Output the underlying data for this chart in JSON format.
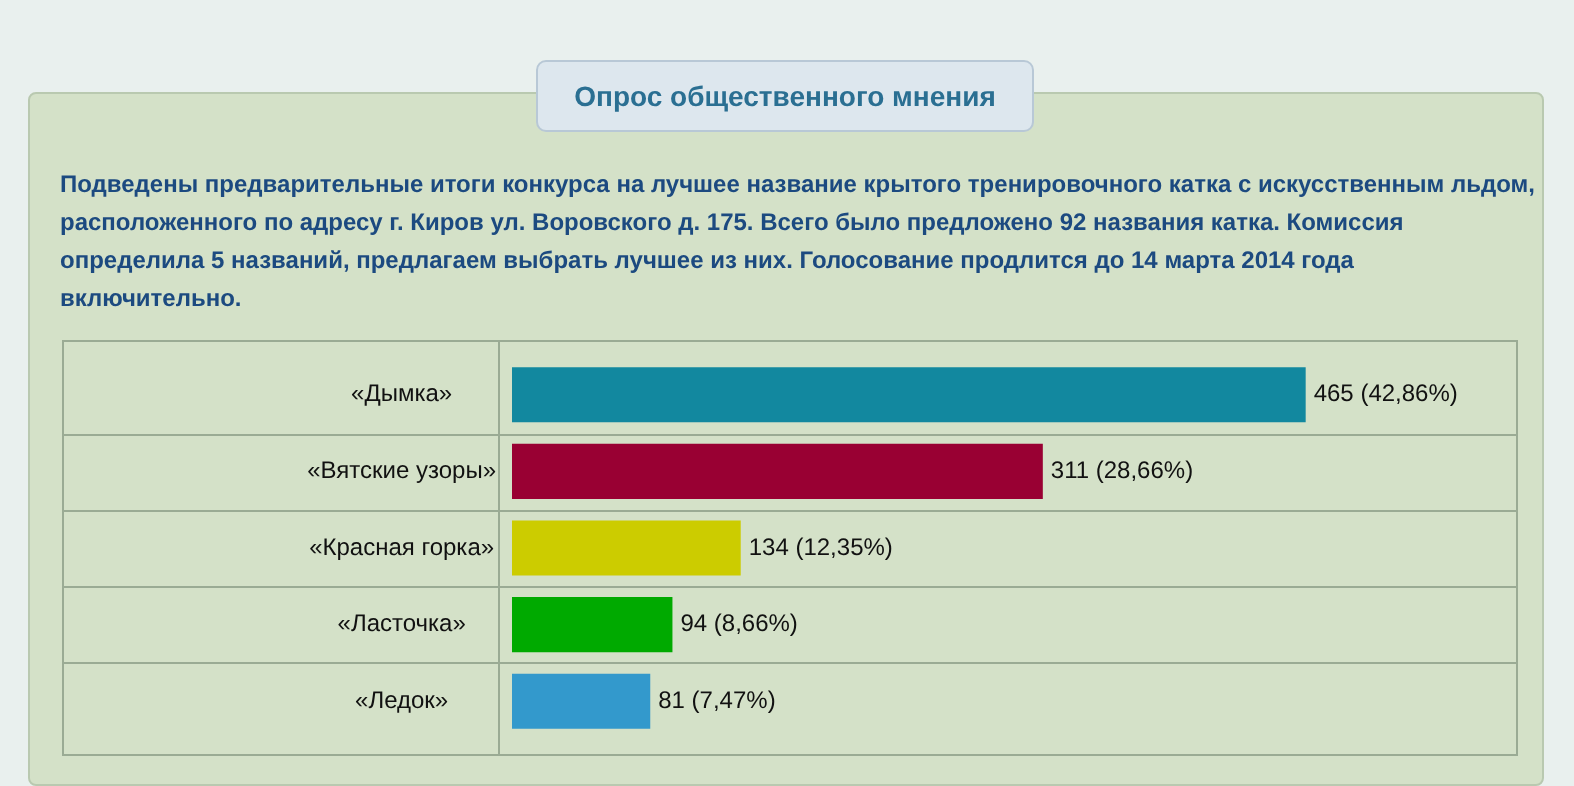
{
  "chart_data": {
    "type": "bar",
    "orientation": "horizontal",
    "title": "Опрос общественного мнения",
    "subtitle": "Подведены предварительные итоги конкурса на лучшее название крытого тренировочного катка с искусственным льдом, расположенного по адресу г. Киров ул. Воровского д. 175. Всего было предложено 92 названия катка. Комиссия определила 5 названий, предлагаем выбрать лучшее из них. Голосование продлится до 14 марта 2014 года включительно.",
    "categories": [
      "«Дымка»",
      "«Вятские узоры»",
      "«Красная горка»",
      "«Ласточка»",
      "«Ледок»"
    ],
    "values": [
      465,
      311,
      134,
      94,
      81
    ],
    "colors": [
      "#12889f",
      "#990033",
      "#cccc00",
      "#00aa00",
      "#3399cc"
    ],
    "value_labels": [
      "465 (42,86%)",
      "311 (28,66%)",
      "134 (12,35%)",
      "94 (8,66%)",
      "81 (7,47%)"
    ],
    "grid": "y"
  }
}
